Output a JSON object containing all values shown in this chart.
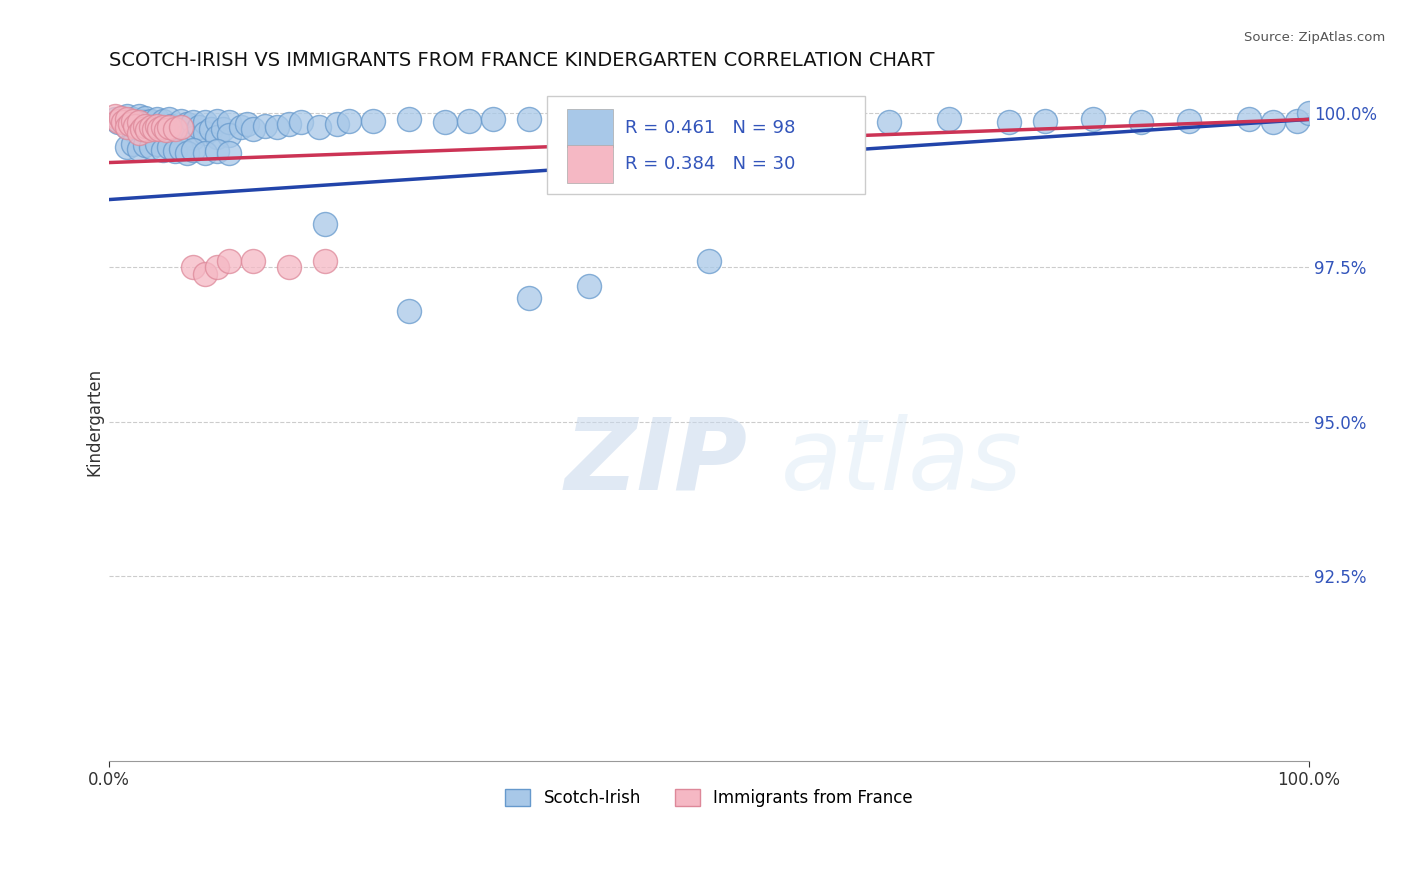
{
  "title": "SCOTCH-IRISH VS IMMIGRANTS FROM FRANCE KINDERGARTEN CORRELATION CHART",
  "ylabel": "Kindergarten",
  "source_text": "Source: ZipAtlas.com",
  "watermark_zip": "ZIP",
  "watermark_atlas": "atlas",
  "xlim": [
    0.0,
    1.0
  ],
  "ylim": [
    0.895,
    1.005
  ],
  "yticks": [
    0.925,
    0.95,
    0.975,
    1.0
  ],
  "ytick_labels": [
    "92.5%",
    "95.0%",
    "97.5%",
    "100.0%"
  ],
  "xticks": [
    0.0,
    1.0
  ],
  "xtick_labels": [
    "0.0%",
    "100.0%"
  ],
  "legend_blue_r": "R = 0.461",
  "legend_blue_n": "N = 98",
  "legend_pink_r": "R = 0.384",
  "legend_pink_n": "N = 30",
  "blue_color": "#a8c8e8",
  "blue_edge_color": "#6699cc",
  "blue_line_color": "#2244aa",
  "pink_color": "#f5b8c4",
  "pink_edge_color": "#dd8899",
  "pink_line_color": "#cc3355",
  "legend_text_color": "#3355bb",
  "background_color": "#ffffff",
  "grid_color": "#cccccc",
  "title_fontsize": 14,
  "label_fontsize": 12,
  "tick_fontsize": 12,
  "blue_x": [
    0.005,
    0.008,
    0.01,
    0.012,
    0.015,
    0.015,
    0.018,
    0.02,
    0.02,
    0.022,
    0.025,
    0.025,
    0.025,
    0.028,
    0.03,
    0.03,
    0.032,
    0.035,
    0.035,
    0.038,
    0.04,
    0.04,
    0.042,
    0.045,
    0.045,
    0.048,
    0.05,
    0.05,
    0.052,
    0.055,
    0.06,
    0.06,
    0.065,
    0.065,
    0.07,
    0.07,
    0.075,
    0.08,
    0.08,
    0.085,
    0.09,
    0.09,
    0.095,
    0.1,
    0.1,
    0.11,
    0.115,
    0.12,
    0.13,
    0.14,
    0.15,
    0.16,
    0.175,
    0.19,
    0.2,
    0.22,
    0.25,
    0.28,
    0.3,
    0.32,
    0.015,
    0.02,
    0.025,
    0.03,
    0.035,
    0.04,
    0.045,
    0.05,
    0.055,
    0.06,
    0.065,
    0.07,
    0.08,
    0.09,
    0.1,
    0.35,
    0.4,
    0.43,
    0.46,
    0.5,
    0.55,
    0.6,
    0.65,
    0.7,
    0.75,
    0.78,
    0.82,
    0.86,
    0.9,
    0.95,
    0.97,
    0.99,
    1.0,
    0.5,
    0.4,
    0.35,
    0.18,
    0.25
  ],
  "blue_y": [
    0.999,
    0.9985,
    0.9992,
    0.9988,
    0.9995,
    0.9978,
    0.9982,
    0.999,
    0.9972,
    0.9985,
    0.9995,
    0.9975,
    0.996,
    0.9988,
    0.9992,
    0.997,
    0.9985,
    0.9988,
    0.9968,
    0.998,
    0.999,
    0.9965,
    0.9975,
    0.9988,
    0.9962,
    0.9975,
    0.999,
    0.9968,
    0.998,
    0.9972,
    0.9988,
    0.9968,
    0.9982,
    0.9965,
    0.9985,
    0.996,
    0.9978,
    0.9985,
    0.9968,
    0.9975,
    0.9988,
    0.9962,
    0.9975,
    0.9985,
    0.9965,
    0.9978,
    0.9982,
    0.9975,
    0.998,
    0.9978,
    0.9982,
    0.9985,
    0.9978,
    0.9982,
    0.9988,
    0.9988,
    0.999,
    0.9985,
    0.9988,
    0.999,
    0.9945,
    0.995,
    0.9942,
    0.9948,
    0.9945,
    0.995,
    0.994,
    0.9945,
    0.9938,
    0.9942,
    0.9935,
    0.994,
    0.9935,
    0.9938,
    0.9935,
    0.999,
    0.999,
    0.9992,
    0.9988,
    0.999,
    0.9992,
    0.999,
    0.9985,
    0.999,
    0.9985,
    0.9988,
    0.999,
    0.9985,
    0.9988,
    0.999,
    0.9985,
    0.9988,
    1.0,
    0.976,
    0.972,
    0.97,
    0.982,
    0.968
  ],
  "pink_x": [
    0.005,
    0.008,
    0.01,
    0.012,
    0.015,
    0.015,
    0.018,
    0.02,
    0.022,
    0.025,
    0.025,
    0.028,
    0.03,
    0.032,
    0.035,
    0.038,
    0.04,
    0.042,
    0.045,
    0.048,
    0.05,
    0.055,
    0.06,
    0.07,
    0.08,
    0.09,
    0.1,
    0.12,
    0.15,
    0.18
  ],
  "pink_y": [
    0.9995,
    0.9988,
    0.9992,
    0.9985,
    0.999,
    0.9978,
    0.9982,
    0.9988,
    0.998,
    0.9985,
    0.9968,
    0.9975,
    0.998,
    0.9972,
    0.9978,
    0.9975,
    0.998,
    0.9975,
    0.9978,
    0.9972,
    0.9978,
    0.9975,
    0.9978,
    0.975,
    0.974,
    0.975,
    0.976,
    0.976,
    0.975,
    0.976
  ],
  "blue_line_x0": 0.0,
  "blue_line_x1": 1.0,
  "blue_line_y0": 0.986,
  "blue_line_y1": 0.999,
  "pink_line_x0": 0.0,
  "pink_line_x1": 1.0,
  "pink_line_y0": 0.992,
  "pink_line_y1": 0.999
}
